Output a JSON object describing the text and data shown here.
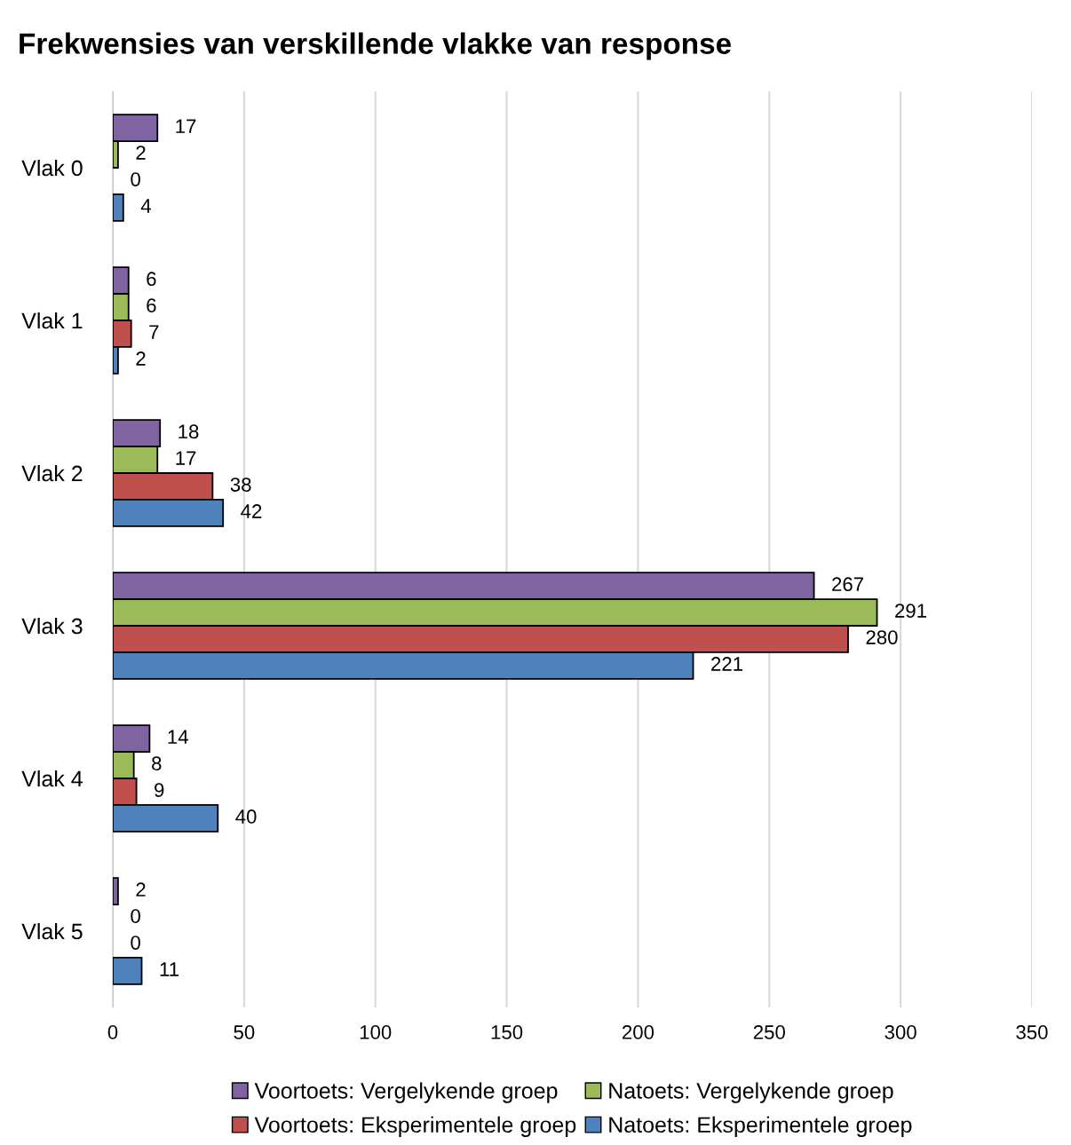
{
  "chart_data": {
    "type": "bar",
    "orientation": "horizontal",
    "title": "Frekwensies van verskillende vlakke van response",
    "categories": [
      "Vlak 0",
      "Vlak 1",
      "Vlak 2",
      "Vlak 3",
      "Vlak 4",
      "Vlak 5"
    ],
    "series": [
      {
        "name": "Voortoets: Vergelykende groep",
        "color": "#8064a2",
        "values": [
          17,
          6,
          18,
          267,
          14,
          2
        ]
      },
      {
        "name": "Natoets: Vergelykende groep",
        "color": "#9bbb59",
        "values": [
          2,
          6,
          17,
          291,
          8,
          0
        ]
      },
      {
        "name": "Voortoets: Eksperimentele groep",
        "color": "#c0504d",
        "values": [
          0,
          7,
          38,
          280,
          9,
          0
        ]
      },
      {
        "name": "Natoets: Eksperimentele groep",
        "color": "#4f81bd",
        "values": [
          4,
          2,
          42,
          221,
          40,
          11
        ]
      }
    ],
    "xlim": [
      0,
      350
    ],
    "xticks": [
      0,
      50,
      100,
      150,
      200,
      250,
      300,
      350
    ],
    "grid": "x",
    "legend": "bottom",
    "data_labels": true
  }
}
